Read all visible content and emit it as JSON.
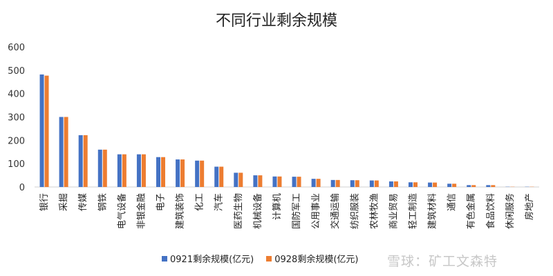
{
  "chart_data": {
    "type": "bar",
    "title": "不同行业剩余规模",
    "xlabel": "",
    "ylabel": "",
    "ylim": [
      0,
      600
    ],
    "yticks": [
      0,
      100,
      200,
      300,
      400,
      500,
      600
    ],
    "grid": false,
    "legend_position": "bottom",
    "categories": [
      "银行",
      "采掘",
      "传媒",
      "钢铁",
      "电气设备",
      "非银金融",
      "电子",
      "建筑装饰",
      "化工",
      "汽车",
      "医药生物",
      "机械设备",
      "计算机",
      "国防军工",
      "公用事业",
      "交通运输",
      "纺织服装",
      "农林牧渔",
      "商业贸易",
      "轻工制造",
      "建筑材料",
      "通信",
      "有色金属",
      "食品饮料",
      "休闲服务",
      "房地产"
    ],
    "series": [
      {
        "name": "0921剩余规模(亿元)",
        "color": "#4472c4",
        "values": [
          482,
          300,
          222,
          160,
          140,
          140,
          128,
          118,
          113,
          87,
          61,
          50,
          45,
          44,
          35,
          30,
          29,
          28,
          24,
          20,
          19,
          14,
          8,
          8,
          1,
          1
        ]
      },
      {
        "name": "0928剩余规模(亿元)",
        "color": "#ed7d31",
        "values": [
          477,
          300,
          222,
          160,
          140,
          140,
          128,
          118,
          113,
          87,
          61,
          50,
          45,
          44,
          35,
          30,
          29,
          28,
          24,
          20,
          19,
          14,
          8,
          8,
          1,
          1
        ]
      }
    ]
  },
  "watermark": "雪球：矿工文森特"
}
